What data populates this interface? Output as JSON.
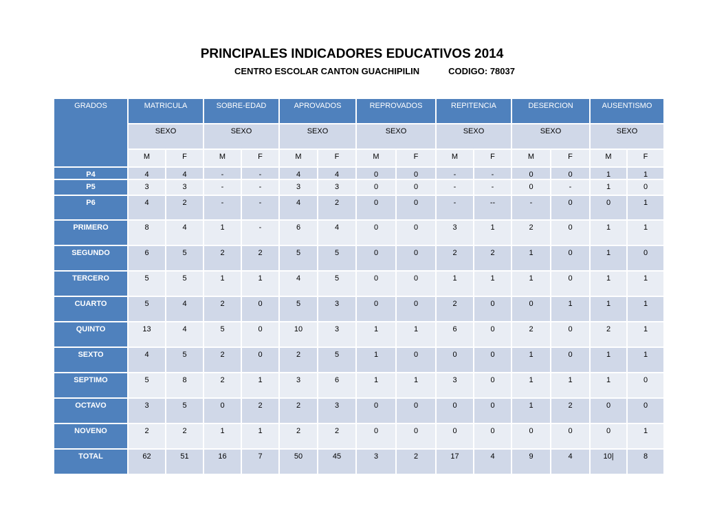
{
  "title": "PRINCIPALES INDICADORES EDUCATIVOS 2014",
  "subtitle": "CENTRO ESCOLAR CANTON GUACHIPILIN",
  "code": "CODIGO: 78037",
  "colors": {
    "header": "#4f81bd",
    "cell_dark": "#d0d8e8",
    "cell_light": "#e9edf4"
  },
  "table": {
    "grados_header": "GRADOS",
    "indicators": [
      "MATRICULA",
      "SOBRE-EDAD",
      "APROVADOS",
      "REPROVADOS",
      "REPITENCIA",
      "DESERCION",
      "AUSENTISMO"
    ],
    "sexo_label": "SEXO",
    "sex_labels": [
      "M",
      "F"
    ],
    "rows": [
      {
        "grade": "P4",
        "values": [
          "4",
          "4",
          "-",
          "-",
          "4",
          "4",
          "0",
          "0",
          "-",
          "-",
          "0",
          "0",
          "1",
          "1"
        ]
      },
      {
        "grade": "P5",
        "values": [
          "3",
          "3",
          "-",
          "-",
          "3",
          "3",
          "0",
          "0",
          "-",
          "-",
          "0",
          "-",
          "1",
          "0"
        ]
      },
      {
        "grade": "P6",
        "values": [
          "4",
          "2",
          "-",
          "-",
          "4",
          "2",
          "0",
          "0",
          "-",
          "--",
          "-",
          "0",
          "0",
          "1"
        ]
      },
      {
        "grade": "PRIMERO",
        "values": [
          "8",
          "4",
          "1",
          "-",
          "6",
          "4",
          "0",
          "0",
          "3",
          "1",
          "2",
          "0",
          "1",
          "1"
        ]
      },
      {
        "grade": "SEGUNDO",
        "values": [
          "6",
          "5",
          "2",
          "2",
          "5",
          "5",
          "0",
          "0",
          "2",
          "2",
          "1",
          "0",
          "1",
          "0"
        ]
      },
      {
        "grade": "TERCERO",
        "values": [
          "5",
          "5",
          "1",
          "1",
          "4",
          "5",
          "0",
          "0",
          "1",
          "1",
          "1",
          "0",
          "1",
          "1"
        ]
      },
      {
        "grade": "CUARTO",
        "values": [
          "5",
          "4",
          "2",
          "0",
          "5",
          "3",
          "0",
          "0",
          "2",
          "0",
          "0",
          "1",
          "1",
          "1"
        ]
      },
      {
        "grade": "QUINTO",
        "values": [
          "13",
          "4",
          "5",
          "0",
          "10",
          "3",
          "1",
          "1",
          "6",
          "0",
          "2",
          "0",
          "2",
          "1"
        ]
      },
      {
        "grade": "SEXTO",
        "values": [
          "4",
          "5",
          "2",
          "0",
          "2",
          "5",
          "1",
          "0",
          "0",
          "0",
          "1",
          "0",
          "1",
          "1"
        ]
      },
      {
        "grade": "SEPTIMO",
        "values": [
          "5",
          "8",
          "2",
          "1",
          "3",
          "6",
          "1",
          "1",
          "3",
          "0",
          "1",
          "1",
          "1",
          "0"
        ]
      },
      {
        "grade": "OCTAVO",
        "values": [
          "3",
          "5",
          "0",
          "2",
          "2",
          "3",
          "0",
          "0",
          "0",
          "0",
          "1",
          "2",
          "0",
          "0"
        ]
      },
      {
        "grade": "NOVENO",
        "values": [
          "2",
          "2",
          "1",
          "1",
          "2",
          "2",
          "0",
          "0",
          "0",
          "0",
          "0",
          "0",
          "0",
          "1"
        ]
      },
      {
        "grade": "TOTAL",
        "values": [
          "62",
          "51",
          "16",
          "7",
          "50",
          "45",
          "3",
          "2",
          "17",
          "4",
          "9",
          "4",
          "10|",
          "8"
        ]
      }
    ]
  }
}
